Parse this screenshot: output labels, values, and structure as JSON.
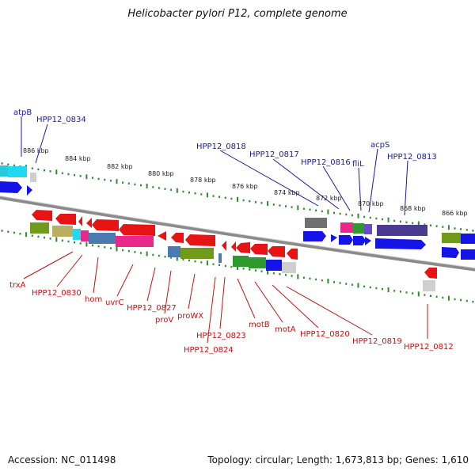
{
  "title": "Helicobacter pylori P12, complete genome",
  "footer": {
    "accession": "Accession: NC_011498",
    "topology": "Topology: circular; Length: 1,673,813 bp; Genes: 1,610"
  },
  "scale_labels": [
    "886 kbp",
    "884 kbp",
    "882 kbp",
    "880 kbp",
    "878 kbp",
    "876 kbp",
    "874 kbp",
    "872 kbp",
    "870 kbp",
    "868 kbp",
    "866 kbp"
  ],
  "top_labels": [
    "atpB",
    "HPP12_0834",
    "HPP12_0818",
    "HPP12_0817",
    "HPP12_0816",
    "fliL",
    "acpS",
    "HPP12_0813"
  ],
  "bottom_labels": [
    "trxA",
    "HPP12_0830",
    "hom",
    "uvrC",
    "HPP12_0827",
    "proV",
    "proWX",
    "HPP12_0823",
    "HPP12_0824",
    "motB",
    "motA",
    "HPP12_0820",
    "HPP12_0819",
    "HPP12_0812"
  ],
  "colors": {
    "forward_strand": "#1414e6",
    "reverse_strand": "#e61414",
    "top_label": "#1a1aa6",
    "bottom_label": "#c81010",
    "tick": "#2e8b2e",
    "backbone": "#808080"
  }
}
